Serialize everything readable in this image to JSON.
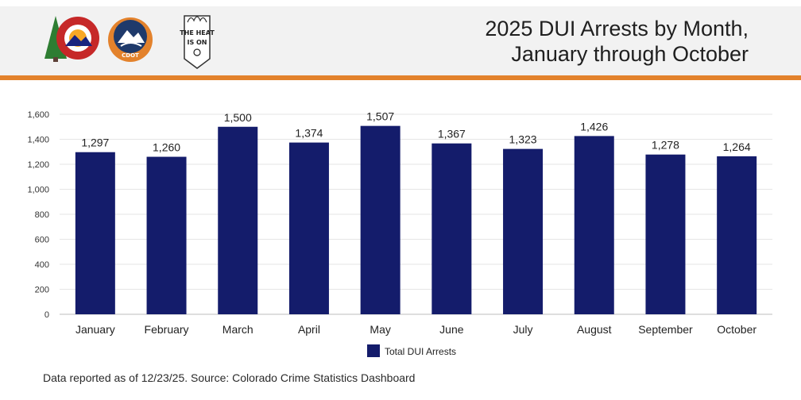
{
  "header": {
    "title_line1": "2025 DUI Arrests by Month,",
    "title_line2": "January through October",
    "logos": [
      {
        "icon": "colorado-state-logo-icon"
      },
      {
        "icon": "cdot-logo-icon",
        "text": "CDOT"
      },
      {
        "icon": "heat-is-on-logo-icon",
        "text": "THE HEAT IS ON"
      }
    ]
  },
  "colors": {
    "bar": "#141c6b",
    "accent": "#e3822c",
    "header_bg": "#f2f2f2"
  },
  "chart_data": {
    "type": "bar",
    "title": "2025 DUI Arrests by Month, January through October",
    "categories": [
      "January",
      "February",
      "March",
      "April",
      "May",
      "June",
      "July",
      "August",
      "September",
      "October"
    ],
    "series": [
      {
        "name": "Total DUI Arrests",
        "values": [
          1297,
          1260,
          1500,
          1374,
          1507,
          1367,
          1323,
          1426,
          1278,
          1264
        ]
      }
    ],
    "data_labels": [
      "1,297",
      "1,260",
      "1,500",
      "1,374",
      "1,507",
      "1,367",
      "1,323",
      "1,426",
      "1,278",
      "1,264"
    ],
    "y_ticks": [
      0,
      200,
      400,
      600,
      800,
      1000,
      1200,
      1400,
      1600
    ],
    "y_tick_labels": [
      "0",
      "200",
      "400",
      "600",
      "800",
      "1,000",
      "1,200",
      "1,400",
      "1,600"
    ],
    "ylim": [
      0,
      1600
    ],
    "grid": true,
    "legend_position": "bottom-center",
    "xlabel": "",
    "ylabel": ""
  },
  "footer": {
    "note": "Data reported as of 12/23/25. Source: Colorado Crime Statistics Dashboard"
  }
}
